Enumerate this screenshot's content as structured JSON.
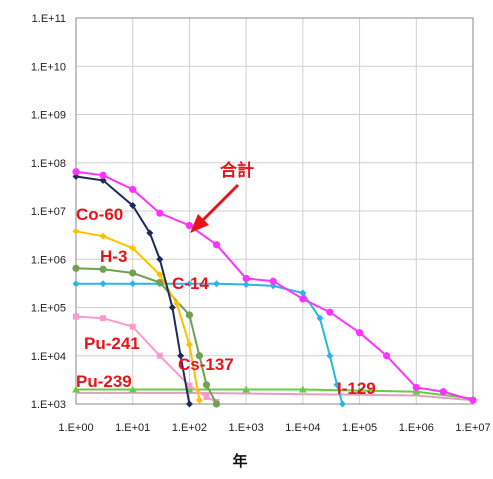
{
  "chart_data": {
    "type": "line",
    "title": "",
    "xlabel": "年",
    "ylabel": "",
    "x_scale": "log",
    "y_scale": "log",
    "xlim": [
      1,
      10000000
    ],
    "ylim": [
      1000,
      100000000000
    ],
    "grid": true,
    "x_ticks": [
      "1.E+00",
      "1.E+01",
      "1.E+02",
      "1.E+03",
      "1.E+04",
      "1.E+05",
      "1.E+06",
      "1.E+07"
    ],
    "y_ticks": [
      "1.E+03",
      "1.E+04",
      "1.E+05",
      "1.E+06",
      "1.E+07",
      "1.E+08",
      "1.E+09",
      "1.E+10",
      "1.E+11"
    ],
    "series": [
      {
        "name": "合計",
        "color": "#ff33ff",
        "marker": "circle",
        "x": [
          1,
          3,
          10,
          30,
          100,
          300,
          1000,
          3000,
          10000,
          30000,
          100000,
          300000,
          1000000,
          3000000,
          10000000
        ],
        "y": [
          65000000,
          55000000,
          28000000,
          9000000,
          5000000,
          2000000,
          400000,
          350000,
          150000,
          80000,
          30000,
          10000,
          2200,
          1800,
          1200
        ]
      },
      {
        "name": "Co-60",
        "color": "#1f2a5c",
        "marker": "diamond",
        "x": [
          1,
          3,
          10,
          20,
          30,
          50,
          70,
          100
        ],
        "y": [
          52000000,
          43000000,
          13000000,
          3500000,
          1000000,
          100000,
          10000,
          1000
        ]
      },
      {
        "name": "H-3",
        "color": "#ffc000",
        "marker": "diamond",
        "x": [
          1,
          3,
          10,
          30,
          60,
          100,
          150
        ],
        "y": [
          3800000,
          3000000,
          1700000,
          480000,
          120000,
          17000,
          1200
        ]
      },
      {
        "name": "C-14",
        "color": "#70a050",
        "marker": "circle",
        "x": [
          1,
          3,
          10,
          30,
          100,
          150,
          200,
          300
        ],
        "y": [
          650000,
          620000,
          520000,
          330000,
          70000,
          10000,
          2500,
          1000
        ]
      },
      {
        "name": "I-129",
        "color": "#29b6e6",
        "marker": "diamond",
        "x": [
          1,
          3,
          10,
          30,
          100,
          300,
          1000,
          3000,
          10000,
          20000,
          30000,
          40000,
          50000
        ],
        "y": [
          310000,
          310000,
          310000,
          310000,
          310000,
          310000,
          300000,
          280000,
          200000,
          60000,
          10000,
          2500,
          1000
        ]
      },
      {
        "name": "Pu-241",
        "color": "#ff99cc",
        "marker": "square",
        "x": [
          1,
          3,
          10,
          30,
          100,
          200,
          300
        ],
        "y": [
          65000,
          60000,
          40000,
          10000,
          2400,
          1400,
          1100
        ]
      },
      {
        "name": "Pu-239",
        "color": "#66cc44",
        "marker": "triangle",
        "x": [
          1,
          10,
          100,
          1000,
          10000,
          100000,
          1000000,
          10000000
        ],
        "y": [
          2000,
          2000,
          2000,
          2000,
          2000,
          1900,
          1800,
          1300
        ]
      },
      {
        "name": "Cs-137",
        "color": "#e0a0c0",
        "marker": "none",
        "x": [
          1,
          10,
          100,
          1000,
          10000,
          100000,
          1000000,
          10000000
        ],
        "y": [
          1700,
          1700,
          1700,
          1650,
          1600,
          1550,
          1500,
          1200
        ]
      }
    ],
    "annotations": [
      {
        "text": "合計",
        "color": "#e8141b"
      },
      {
        "text": "Co-60",
        "color": "#e8141b"
      },
      {
        "text": "H-3",
        "color": "#e8141b"
      },
      {
        "text": "C-14",
        "color": "#e8141b"
      },
      {
        "text": "Pu-241",
        "color": "#e8141b"
      },
      {
        "text": "Cs-137",
        "color": "#e8141b"
      },
      {
        "text": "Pu-239",
        "color": "#e8141b"
      },
      {
        "text": "I-129",
        "color": "#e8141b"
      }
    ]
  }
}
